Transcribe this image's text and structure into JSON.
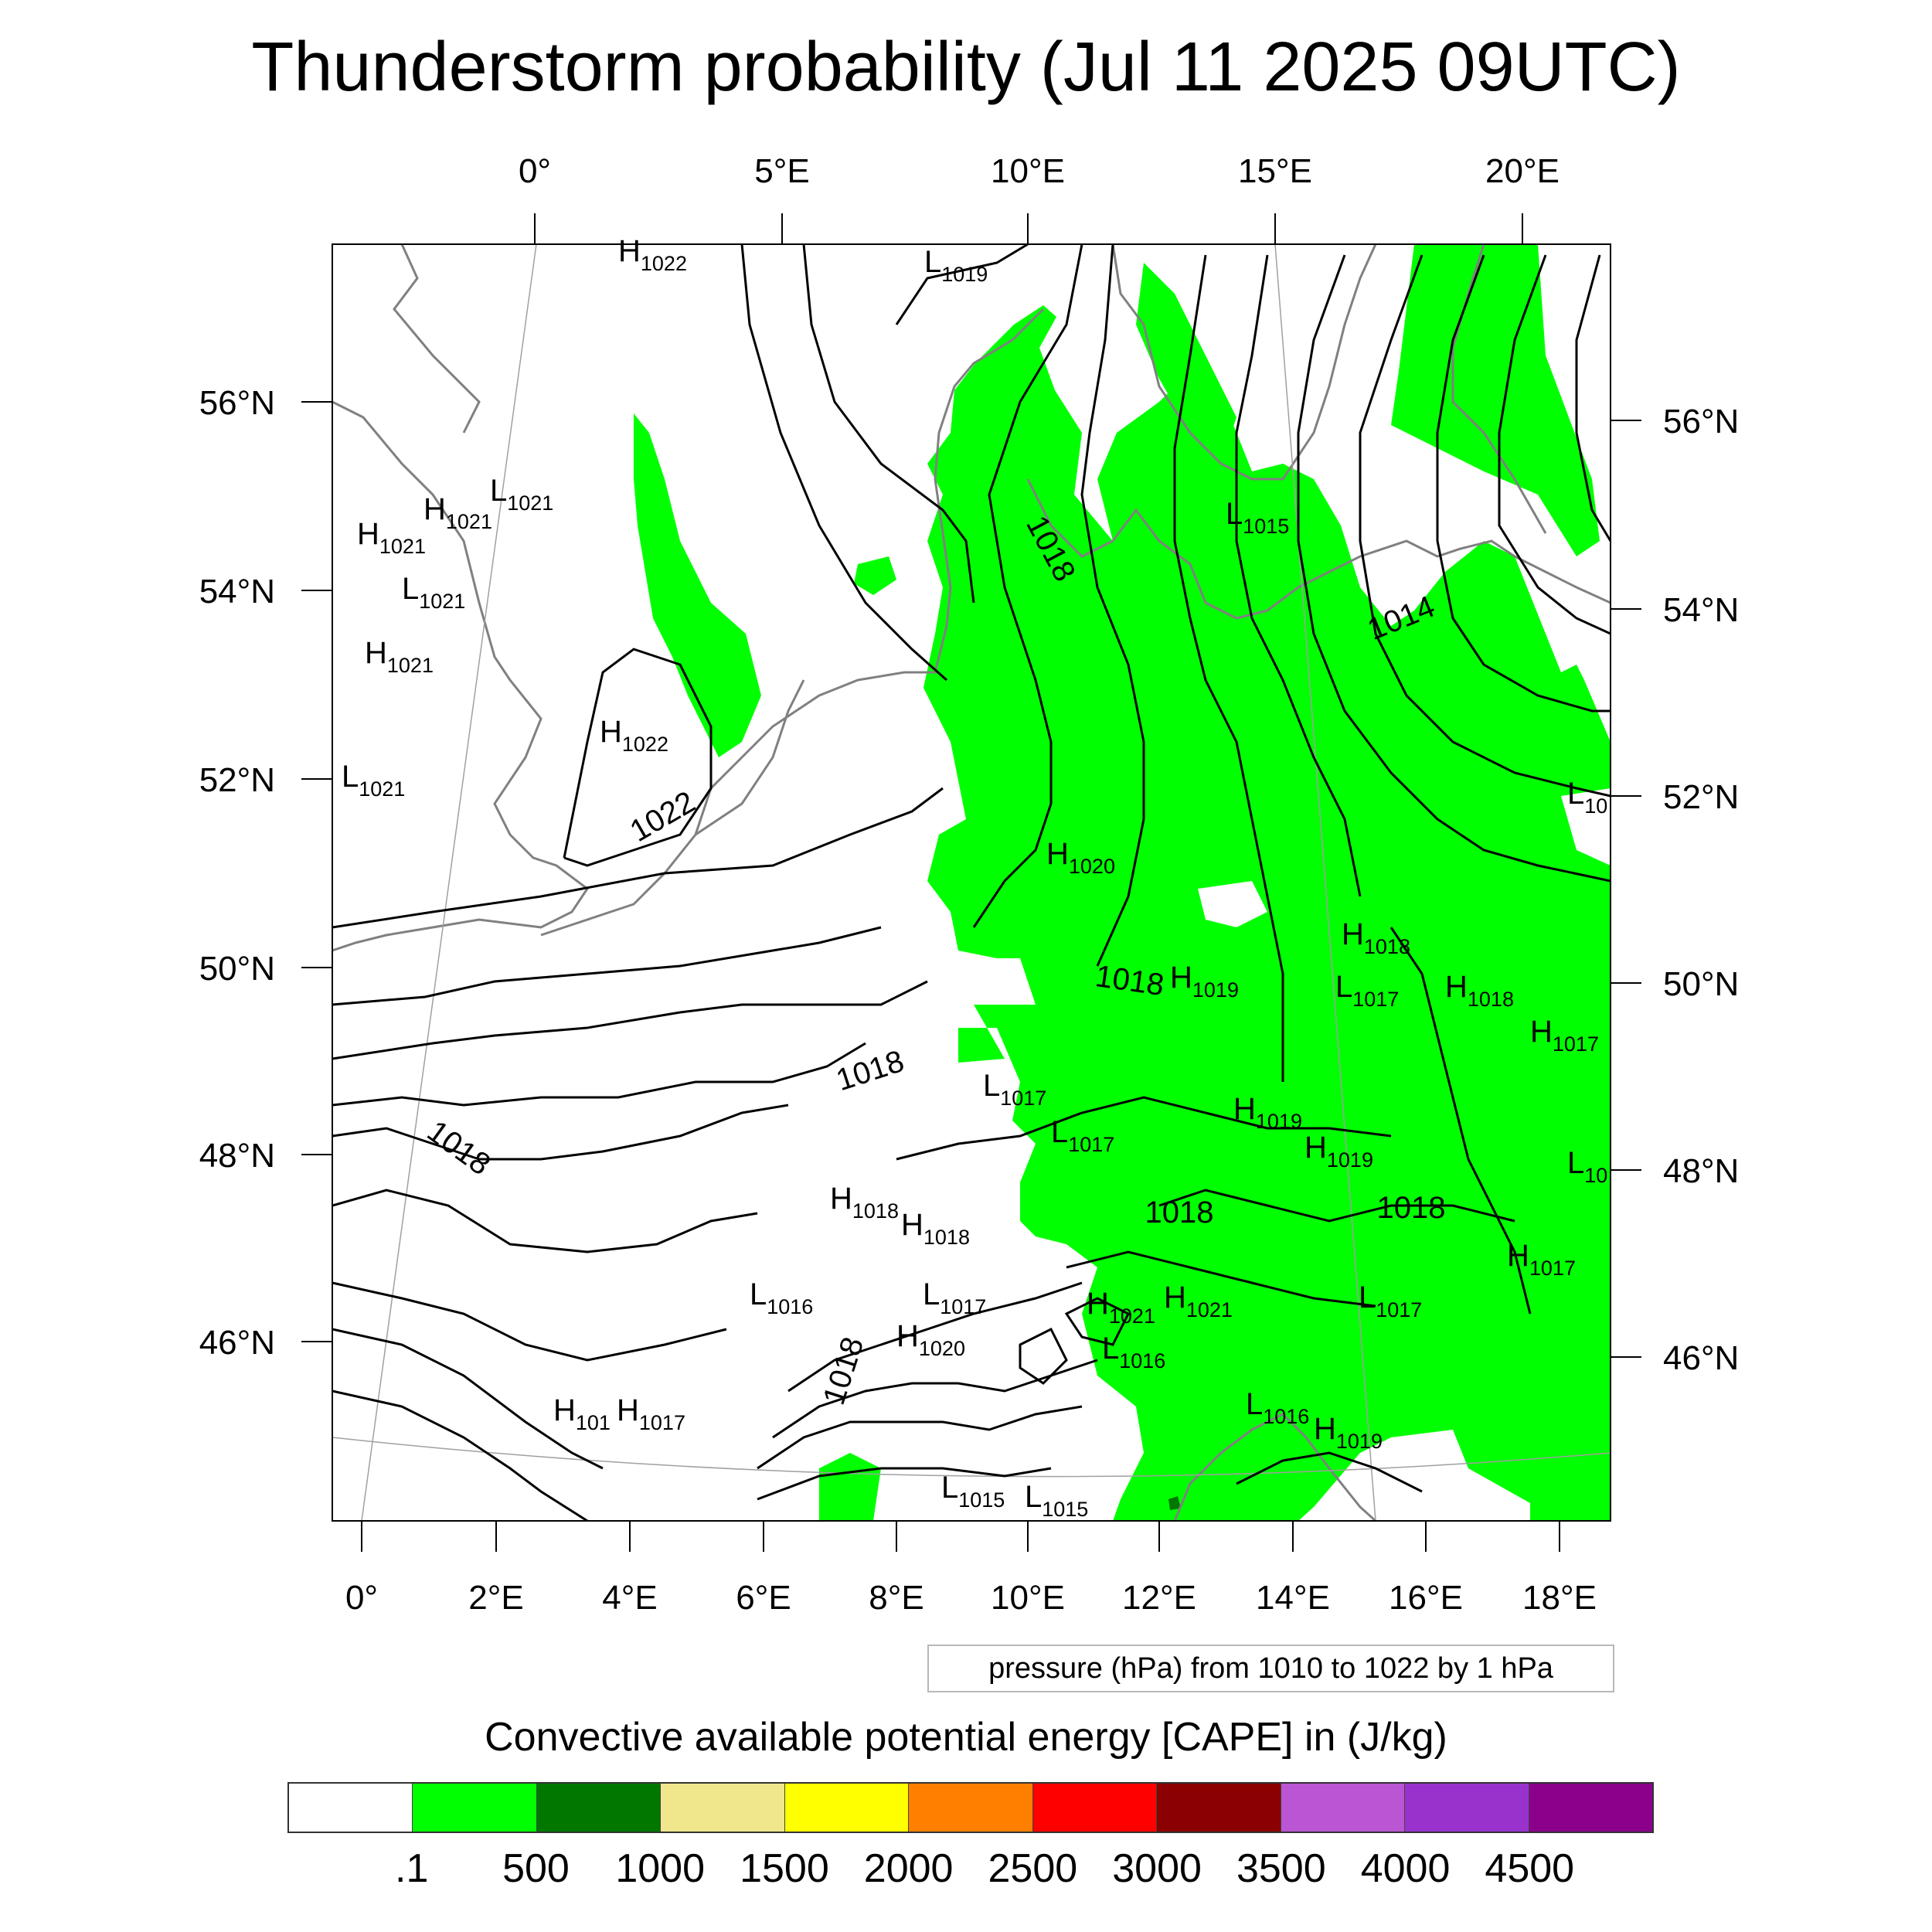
{
  "title": "Thunderstorm probability (Jul 11 2025 09UTC)",
  "map": {
    "top_lon_labels": [
      "0°",
      "5°E",
      "10°E",
      "15°E",
      "20°E"
    ],
    "bottom_lon_labels": [
      "0°",
      "2°E",
      "4°E",
      "6°E",
      "8°E",
      "10°E",
      "12°E",
      "14°E",
      "16°E",
      "18°E"
    ],
    "left_lat_labels": [
      "56°N",
      "54°N",
      "52°N",
      "50°N",
      "48°N",
      "46°N"
    ],
    "right_lat_labels": [
      "56°N",
      "54°N",
      "52°N",
      "50°N",
      "48°N",
      "46°N"
    ],
    "pressure_centers": [
      {
        "t": "H",
        "v": "1022"
      },
      {
        "t": "L",
        "v": "1019"
      },
      {
        "t": "L",
        "v": "1021"
      },
      {
        "t": "H",
        "v": "1021"
      },
      {
        "t": "H",
        "v": "1021"
      },
      {
        "t": "L",
        "v": "1021"
      },
      {
        "t": "H",
        "v": "1021"
      },
      {
        "t": "H",
        "v": "1022"
      },
      {
        "t": "L",
        "v": "1021"
      },
      {
        "t": "L",
        "v": "1015"
      },
      {
        "t": "L",
        "v": "10"
      },
      {
        "t": "H",
        "v": "1020"
      },
      {
        "t": "H",
        "v": "1018"
      },
      {
        "t": "H",
        "v": "1019"
      },
      {
        "t": "L",
        "v": "1017"
      },
      {
        "t": "H",
        "v": "1018"
      },
      {
        "t": "H",
        "v": "1017"
      },
      {
        "t": "L",
        "v": "1017"
      },
      {
        "t": "H",
        "v": "1019"
      },
      {
        "t": "L",
        "v": "1017"
      },
      {
        "t": "H",
        "v": "1019"
      },
      {
        "t": "L",
        "v": "10"
      },
      {
        "t": "H",
        "v": "1018"
      },
      {
        "t": "H",
        "v": "1018"
      },
      {
        "t": "H",
        "v": "1017"
      },
      {
        "t": "L",
        "v": "1016"
      },
      {
        "t": "L",
        "v": "1017"
      },
      {
        "t": "H",
        "v": "1021"
      },
      {
        "t": "H",
        "v": "1021"
      },
      {
        "t": "L",
        "v": "1017"
      },
      {
        "t": "H",
        "v": "1020"
      },
      {
        "t": "L",
        "v": "1016"
      },
      {
        "t": "H",
        "v": "101"
      },
      {
        "t": "H",
        "v": "1017"
      },
      {
        "t": "L",
        "v": "1016"
      },
      {
        "t": "H",
        "v": "1019"
      },
      {
        "t": "L",
        "v": "1015"
      },
      {
        "t": "L",
        "v": "1015"
      }
    ],
    "isobar_labels": [
      "1018",
      "1014",
      "1022",
      "1018",
      "1018",
      "1018",
      "1018",
      "1018",
      "1018"
    ]
  },
  "info_box": "pressure (hPa) from 1010 to 1022 by 1 hPa",
  "colorbar": {
    "title": "Convective available potential energy [CAPE] in (J/kg)",
    "colors": [
      "#ffffff",
      "#00ff00",
      "#007800",
      "#f0e68c",
      "#ffff00",
      "#ff8000",
      "#ff0000",
      "#8b0000",
      "#ba55d3",
      "#9932cc",
      "#8b008b"
    ],
    "labels": [
      ".1",
      "500",
      "1000",
      "1500",
      "2000",
      "2500",
      "3000",
      "3500",
      "4000",
      "4500"
    ]
  },
  "colors": {
    "cape_fill": "#00ff00",
    "isobar": "#000000",
    "coastline": "#808080",
    "graticule": "#a0a0a0"
  }
}
